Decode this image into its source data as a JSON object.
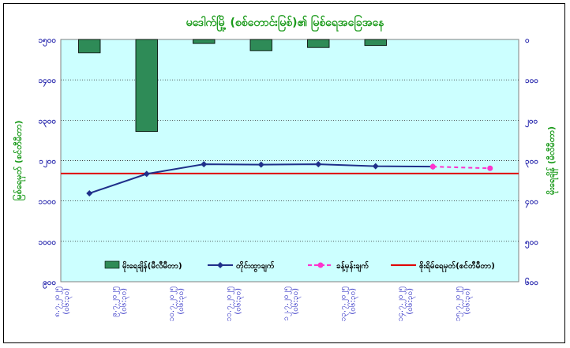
{
  "chart_data": {
    "type": "bar",
    "title": "မဒေါက်မြို့ (စစ်တောင်းမြစ်)၏ မြစ်ရေအခြေအနေ",
    "ylabel_left": "မြစ်ရေမှတ် (စင်တီမီတာ)",
    "ylabel_right": "မိုးရေချိန် (မီလီမီတာ)",
    "left_axis": {
      "ylim": [
        900,
        1500
      ],
      "ticks": [
        900,
        1000,
        1100,
        1200,
        1300,
        1400,
        1500
      ],
      "tick_labels": [
        "၉၀၀",
        "၁၀၀၀",
        "၁၁၀၀",
        "၁၂၀၀",
        "၁၃၀၀",
        "၁၄၀၀",
        "၁၅၀၀"
      ]
    },
    "right_axis": {
      "ylim": [
        0,
        600
      ],
      "inverted": true,
      "ticks": [
        0,
        100,
        200,
        300,
        400,
        500,
        600
      ],
      "tick_labels": [
        "၀",
        "၁၀၀",
        "၂၀၀",
        "၃၀၀",
        "၄၀၀",
        "၅၀၀",
        "၆၀၀"
      ]
    },
    "categories": [
      [
        "၈.၇.၂၀၂၅",
        "(၀၆:၃၀)"
      ],
      [
        "၉.၇.၂၀၂၅",
        "(၀၆:၃၀)"
      ],
      [
        "၁၀.၇.၂၀၂၅",
        "(၀၆:၃၀)"
      ],
      [
        "၁၁.၇.၂၀၂၅",
        "(၀၆:၃၀)"
      ],
      [
        "၁၂.၇.၂၀၂၅",
        "(၀၆:၃၀)"
      ],
      [
        "၁၃.၇.၂၀၂၅",
        "(၀၆:၃၀)"
      ],
      [
        "၁၄.၇.၂၀၂၅",
        "(၀၆:၃၀)"
      ],
      [
        "၁၅.၇.၂၀၂၅",
        "(၀၆:၃၀)"
      ]
    ],
    "series": [
      {
        "name": "မိုးရေချိန်(မီလီမီတာ)",
        "kind": "bar",
        "axis": "right",
        "color": "#2e8b57",
        "values": [
          33,
          228,
          10,
          28,
          20,
          15,
          null,
          null
        ]
      },
      {
        "name": "တိုင်းထွာချက်",
        "kind": "line",
        "axis": "left",
        "color": "#1f2f8a",
        "values": [
          1119,
          1167,
          1191,
          1190,
          1191,
          1186,
          1185,
          null
        ]
      },
      {
        "name": "ခန့်မှန်းချက်",
        "kind": "line-dashed",
        "axis": "left",
        "color": "#ff33cc",
        "values": [
          null,
          null,
          null,
          null,
          null,
          null,
          1185,
          1181
        ]
      },
      {
        "name": "စိုးရိမ်ရေမှတ်(စင်တီမီတာ)",
        "kind": "hline",
        "axis": "left",
        "color": "#e00000",
        "value": 1168
      }
    ],
    "grid": true,
    "legend": "bottom-inside"
  },
  "colors": {
    "plot_bg": "#ccffff",
    "grid": "#000000"
  }
}
